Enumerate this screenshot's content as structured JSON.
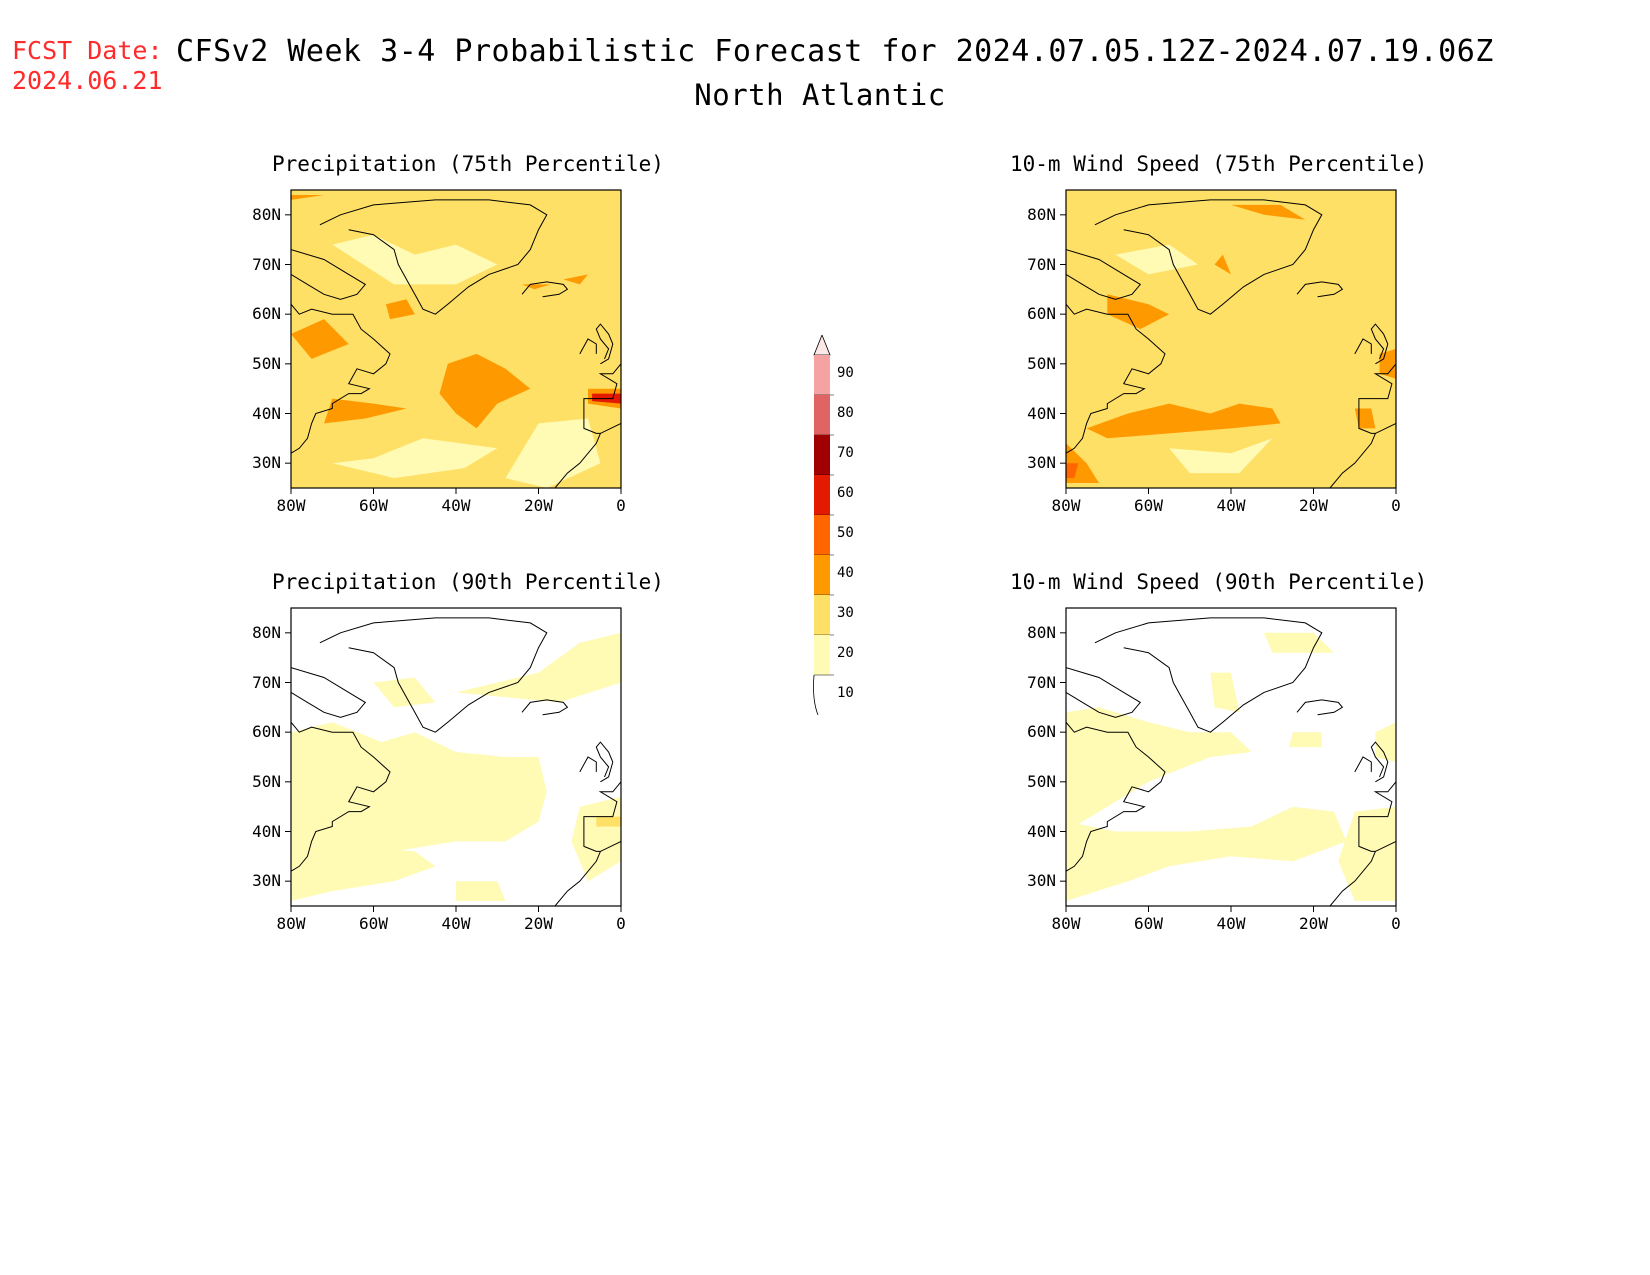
{
  "header": {
    "fcst_label": "FCST Date:",
    "fcst_date": "2024.06.21",
    "title": "CFSv2 Week 3-4 Probabilistic Forecast for 2024.07.05.12Z-2024.07.19.06Z",
    "region": "North Atlantic"
  },
  "axes": {
    "lat_labels": [
      "80N",
      "70N",
      "60N",
      "50N",
      "40N",
      "30N"
    ],
    "lon_labels": [
      "80W",
      "60W",
      "40W",
      "20W",
      "0"
    ]
  },
  "panels": [
    {
      "title": "Precipitation (75th Percentile)",
      "background_level": "20-30"
    },
    {
      "title": "10-m Wind Speed (75th Percentile)",
      "background_level": "20-30"
    },
    {
      "title": "Precipitation (90th Percentile)",
      "background_level": "0-10"
    },
    {
      "title": "10-m Wind Speed (90th Percentile)",
      "background_level": "0-10"
    }
  ],
  "colorbar": {
    "labels": [
      "90",
      "80",
      "70",
      "60",
      "50",
      "40",
      "30",
      "20",
      "10"
    ],
    "colors": [
      "#fde8e8",
      "#f4a2a2",
      "#e06464",
      "#a00000",
      "#e41a00",
      "#ff6600",
      "#ff9900",
      "#ffe066",
      "#fffab4"
    ]
  }
}
